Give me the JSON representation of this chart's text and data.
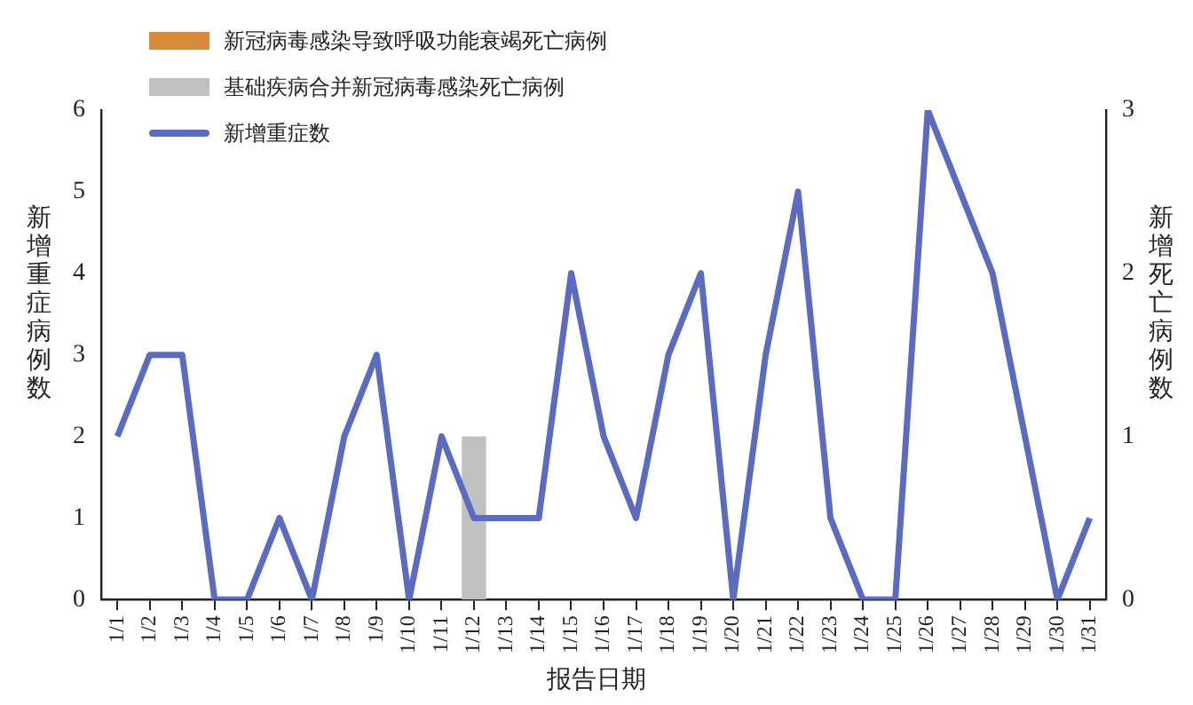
{
  "chart_data": {
    "type": "line",
    "xlabel": "报告日期",
    "ylabel": "新增重症病例数",
    "y2label": "新增死亡病例数",
    "categories": [
      "1/1",
      "1/2",
      "1/3",
      "1/4",
      "1/5",
      "1/6",
      "1/7",
      "1/8",
      "1/9",
      "1/10",
      "1/11",
      "1/12",
      "1/13",
      "1/14",
      "1/15",
      "1/16",
      "1/17",
      "1/18",
      "1/19",
      "1/20",
      "1/21",
      "1/22",
      "1/23",
      "1/24",
      "1/25",
      "1/26",
      "1/27",
      "1/28",
      "1/29",
      "1/30",
      "1/31"
    ],
    "series": [
      {
        "name": "新冠病毒感染导致呼吸功能衰竭死亡病例",
        "type": "bar",
        "axis": "y2",
        "color": "#d98b3a",
        "values": [
          0,
          0,
          0,
          0,
          0,
          0,
          0,
          0,
          0,
          0,
          0,
          0,
          0,
          0,
          0,
          0,
          0,
          0,
          0,
          0,
          0,
          0,
          0,
          0,
          0,
          0,
          0,
          0,
          0,
          0,
          0
        ]
      },
      {
        "name": "基础疾病合并新冠病毒感染死亡病例",
        "type": "bar",
        "axis": "y2",
        "color": "#c0c0c0",
        "values": [
          0,
          0,
          0,
          0,
          0,
          0,
          0,
          0,
          0,
          0,
          0,
          1,
          0,
          0,
          0,
          0,
          0,
          0,
          0,
          0,
          0,
          0,
          0,
          0,
          0,
          0,
          0,
          0,
          0,
          0,
          0
        ]
      },
      {
        "name": "新增重症数",
        "color": "#5b6bc0",
        "values": [
          2,
          3,
          3,
          0,
          0,
          1,
          0,
          2,
          3,
          0,
          2,
          1,
          1,
          1,
          4,
          2,
          1,
          3,
          4,
          0,
          3,
          5,
          1,
          0,
          0,
          6,
          5,
          4,
          2,
          0,
          1
        ]
      }
    ],
    "ylim": [
      0,
      6
    ],
    "yticks": [
      0,
      1,
      2,
      3,
      4,
      5,
      6
    ],
    "y2lim": [
      0,
      3
    ],
    "y2ticks": [
      0,
      1,
      2,
      3
    ],
    "grid": false,
    "legend": "top left",
    "marker": "none",
    "line_style": "solid"
  }
}
